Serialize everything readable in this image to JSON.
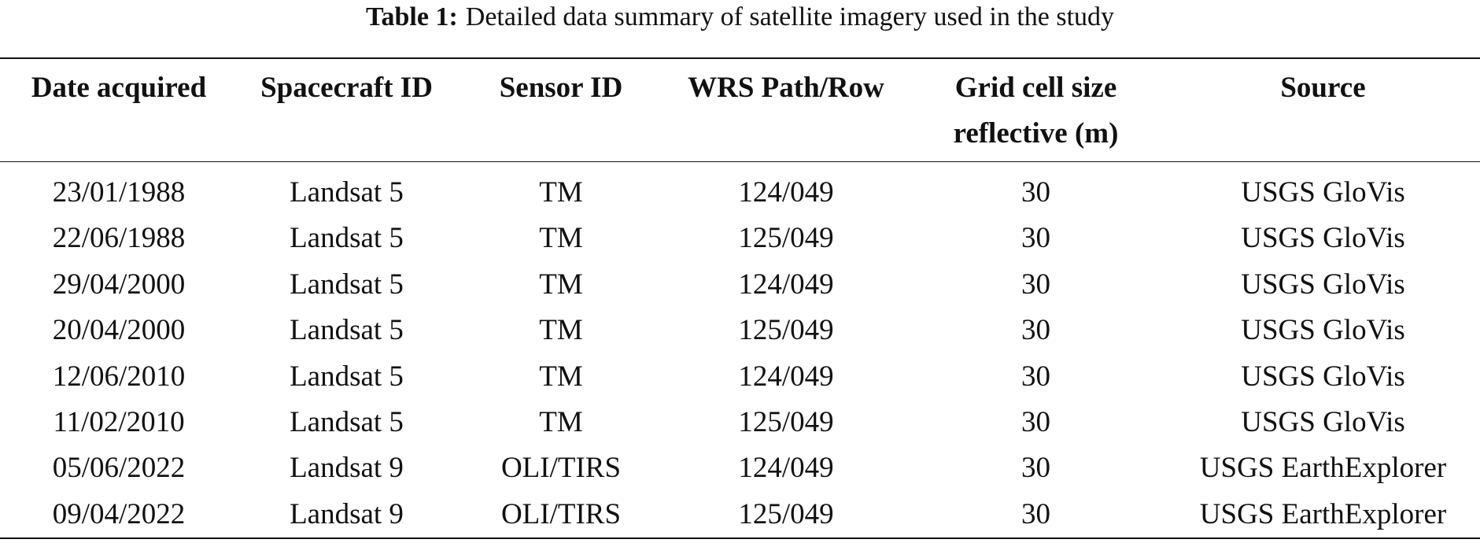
{
  "caption": {
    "label": "Table 1:",
    "text": "Detailed data summary of satellite imagery used in the study"
  },
  "table": {
    "header": [
      "Date acquired",
      "Spacecraft ID",
      "Sensor ID",
      "WRS Path/Row",
      "Grid cell size reflective (m)",
      "Source"
    ],
    "rows": [
      [
        "23/01/1988",
        "Landsat 5",
        "TM",
        "124/049",
        "30",
        "USGS GloVis"
      ],
      [
        "22/06/1988",
        "Landsat 5",
        "TM",
        "125/049",
        "30",
        "USGS GloVis"
      ],
      [
        "29/04/2000",
        "Landsat 5",
        "TM",
        "124/049",
        "30",
        "USGS GloVis"
      ],
      [
        "20/04/2000",
        "Landsat 5",
        "TM",
        "125/049",
        "30",
        "USGS GloVis"
      ],
      [
        "12/06/2010",
        "Landsat 5",
        "TM",
        "124/049",
        "30",
        "USGS GloVis"
      ],
      [
        "11/02/2010",
        "Landsat 5",
        "TM",
        "125/049",
        "30",
        "USGS GloVis"
      ],
      [
        "05/06/2022",
        "Landsat 9",
        "OLI/TIRS",
        "124/049",
        "30",
        "USGS EarthExplorer"
      ],
      [
        "09/04/2022",
        "Landsat 9",
        "OLI/TIRS",
        "125/049",
        "30",
        "USGS EarthExplorer"
      ]
    ]
  }
}
